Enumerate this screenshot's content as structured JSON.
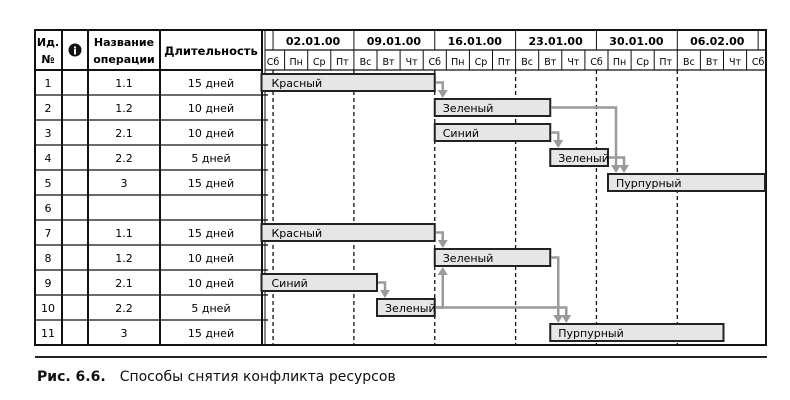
{
  "table": {
    "headers": {
      "id": "Ид. №",
      "info_icon": "info-icon",
      "name": "Название операции",
      "duration": "Длительность"
    },
    "rows": [
      {
        "id": "1",
        "name": "1.1",
        "duration": "15 дней"
      },
      {
        "id": "2",
        "name": "1.2",
        "duration": "10 дней"
      },
      {
        "id": "3",
        "name": "2.1",
        "duration": "10 дней"
      },
      {
        "id": "4",
        "name": "2.2",
        "duration": "5 дней"
      },
      {
        "id": "5",
        "name": "3",
        "duration": "15 дней"
      },
      {
        "id": "6",
        "name": "",
        "duration": ""
      },
      {
        "id": "7",
        "name": "1.1",
        "duration": "15 дней"
      },
      {
        "id": "8",
        "name": "1.2",
        "duration": "10 дней"
      },
      {
        "id": "9",
        "name": "2.1",
        "duration": "10 дней"
      },
      {
        "id": "10",
        "name": "2.2",
        "duration": "5 дней"
      },
      {
        "id": "11",
        "name": "3",
        "duration": "15 дней"
      }
    ]
  },
  "timescale": {
    "weeks": [
      "02.01.00",
      "09.01.00",
      "16.01.00",
      "23.01.00",
      "30.01.00",
      "06.02.00"
    ],
    "days": [
      "Сб",
      "Пн",
      "Ср",
      "Пт",
      "Вс",
      "Вт",
      "Чт",
      "Сб",
      "Пн",
      "Ср",
      "Пт",
      "Вс",
      "Вт",
      "Чт",
      "Сб",
      "Пн",
      "Ср",
      "Пт",
      "Вс",
      "Вт",
      "Чт",
      "Сб"
    ]
  },
  "tasks": [
    {
      "row": 1,
      "label": "Красный",
      "start": "01.01.00",
      "days": 15
    },
    {
      "row": 2,
      "label": "Зеленый",
      "start": "16.01.00",
      "days": 10
    },
    {
      "row": 3,
      "label": "Синий",
      "start": "16.01.00",
      "days": 10
    },
    {
      "row": 4,
      "label": "Зеленый",
      "start": "26.01.00",
      "days": 5
    },
    {
      "row": 5,
      "label": "Пурпурный",
      "start": "31.01.00",
      "days": 15
    },
    {
      "row": 7,
      "label": "Красный",
      "start": "01.01.00",
      "days": 15
    },
    {
      "row": 8,
      "label": "Зеленый",
      "start": "16.01.00",
      "days": 10
    },
    {
      "row": 9,
      "label": "Синий",
      "start": "01.01.00",
      "days": 10
    },
    {
      "row": 10,
      "label": "Зеленый",
      "start": "11.01.00",
      "days": 5
    },
    {
      "row": 11,
      "label": "Пурпурный",
      "start": "26.01.00",
      "days": 15
    }
  ],
  "links": [
    [
      1,
      2
    ],
    [
      3,
      4
    ],
    [
      2,
      5
    ],
    [
      4,
      5
    ],
    [
      7,
      8
    ],
    [
      9,
      10
    ],
    [
      10,
      8
    ],
    [
      8,
      11
    ],
    [
      10,
      11
    ]
  ],
  "colors": {
    "bar_fill": "#e6e6e6",
    "bar_stroke": "#222222",
    "link": "#9a9a9a",
    "grid": "#111111"
  },
  "caption": {
    "label": "Рис. 6.6.",
    "text": "Способы снятия конфликта ресурсов"
  }
}
